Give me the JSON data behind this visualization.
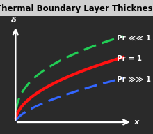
{
  "title": "Thermal Boundary Layer Thickness",
  "xlabel": "x",
  "ylabel": "δ",
  "background_color": "#2a2a2a",
  "title_bg_color": "#d0d0d0",
  "curves": [
    {
      "label": "Pr ≪≪ 1",
      "color": "#22cc55",
      "linestyle": "dashed",
      "exponent": 0.38,
      "scale": 0.82
    },
    {
      "label": "Pr = 1",
      "color": "#ff1111",
      "linestyle": "solid",
      "exponent": 0.5,
      "scale": 0.62
    },
    {
      "label": "Pr ≫≫ 1",
      "color": "#3366ff",
      "linestyle": "dashed",
      "exponent": 0.62,
      "scale": 0.42
    }
  ],
  "title_fontsize": 8.5,
  "label_fontsize": 8,
  "legend_fontsize": 7.5,
  "axis_color": "#ffffff",
  "text_color": "#000000"
}
